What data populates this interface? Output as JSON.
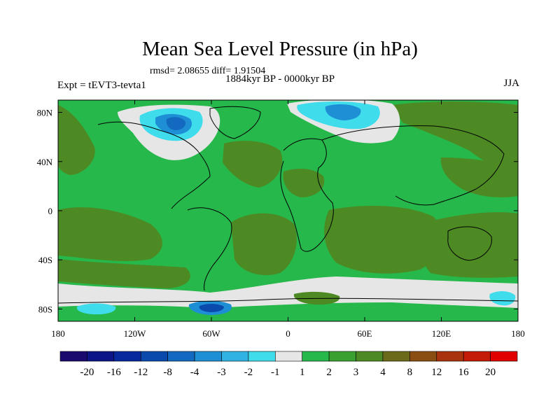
{
  "chart_data": {
    "type": "heatmap",
    "title": "Mean Sea Level Pressure (in hPa)",
    "stats": "rmsd= 2.08655 diff= 1.91504",
    "period": "1884kyr BP - 0000kyr BP",
    "experiment": "Expt = tEVT3-tevta1",
    "season": "JJA",
    "xlabel": "",
    "ylabel": "",
    "xlim": [
      -180,
      180
    ],
    "ylim": [
      -90,
      90
    ],
    "x_ticks": [
      {
        "value": -180,
        "label": "180"
      },
      {
        "value": -120,
        "label": "120W"
      },
      {
        "value": -60,
        "label": "60W"
      },
      {
        "value": 0,
        "label": "0"
      },
      {
        "value": 60,
        "label": "60E"
      },
      {
        "value": 120,
        "label": "120E"
      },
      {
        "value": 180,
        "label": "180"
      }
    ],
    "y_ticks": [
      {
        "value": 80,
        "label": "80N"
      },
      {
        "value": 40,
        "label": "40N"
      },
      {
        "value": 0,
        "label": "0"
      },
      {
        "value": -40,
        "label": "40S"
      },
      {
        "value": -80,
        "label": "80S"
      }
    ],
    "colorbar": {
      "labels": [
        "-20",
        "-16",
        "-12",
        "-8",
        "-4",
        "-3",
        "-2",
        "-1",
        "1",
        "2",
        "3",
        "4",
        "8",
        "12",
        "16",
        "20"
      ],
      "colors": [
        "#1a0a6e",
        "#0d1485",
        "#08299e",
        "#0b4aad",
        "#1369c0",
        "#1e8fd4",
        "#30b3e2",
        "#3fdcec",
        "#e6e6e6",
        "#26b84a",
        "#3aa030",
        "#4d8a24",
        "#6b6a1a",
        "#8a4d12",
        "#a8330c",
        "#c41a08",
        "#e00000"
      ]
    },
    "regions": [
      {
        "name": "background",
        "lon": [
          -180,
          180
        ],
        "lat": [
          -90,
          90
        ],
        "level": "2-3",
        "color": "#26b84a"
      },
      {
        "name": "north-atlantic-high",
        "lon": [
          -60,
          0
        ],
        "lat": [
          20,
          50
        ],
        "level": "3-4",
        "color": "#4d8a24"
      },
      {
        "name": "north-pacific-high",
        "lon": [
          -180,
          -120
        ],
        "lat": [
          20,
          60
        ],
        "level": "3-4",
        "color": "#4d8a24"
      },
      {
        "name": "tropical-pacific-south",
        "lon": [
          -180,
          -60
        ],
        "lat": [
          -60,
          -15
        ],
        "level": "3-4",
        "color": "#4d8a24"
      },
      {
        "name": "south-atlantic",
        "lon": [
          -40,
          20
        ],
        "lat": [
          -50,
          -15
        ],
        "level": "3-4",
        "color": "#4d8a24"
      },
      {
        "name": "indian-ocean",
        "lon": [
          40,
          110
        ],
        "lat": [
          -55,
          0
        ],
        "level": "3-4",
        "color": "#4d8a24"
      },
      {
        "name": "australia-pacific",
        "lon": [
          110,
          180
        ],
        "lat": [
          -55,
          -10
        ],
        "level": "3-4",
        "color": "#4d8a24"
      },
      {
        "name": "greenland-low",
        "lon": [
          -60,
          -20
        ],
        "lat": [
          55,
          85
        ],
        "level": "-4 to -1",
        "color": "#30b3e2"
      },
      {
        "name": "north-america-low",
        "lon": [
          -100,
          -60
        ],
        "lat": [
          50,
          80
        ],
        "level": "-1 to 1",
        "color": "#e6e6e6"
      },
      {
        "name": "scandinavia-low",
        "lon": [
          10,
          60
        ],
        "lat": [
          58,
          85
        ],
        "level": "-3 to -1",
        "color": "#3fdcec"
      },
      {
        "name": "antarctic-coast",
        "lon": [
          -180,
          180
        ],
        "lat": [
          -80,
          -68
        ],
        "level": "-1 to 1",
        "color": "#e6e6e6"
      }
    ]
  }
}
